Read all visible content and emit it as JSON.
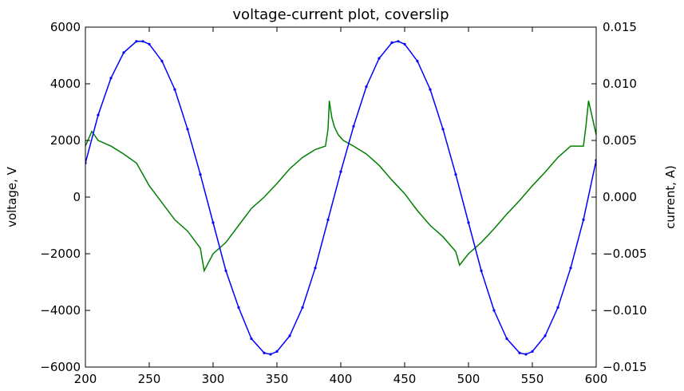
{
  "chart_data": {
    "type": "line",
    "title": "voltage-current plot, coverslip",
    "xlabel": "",
    "ylabel_left": "voltage, V",
    "ylabel_right": "current, A)",
    "xlim": [
      200,
      600
    ],
    "ylim_left": [
      -6000,
      6000
    ],
    "ylim_right": [
      -0.015,
      0.015
    ],
    "xticks": [
      "200",
      "250",
      "300",
      "350",
      "400",
      "450",
      "500",
      "550",
      "600"
    ],
    "yticks_left": [
      "6000",
      "4000",
      "2000",
      "0",
      "−2000",
      "−4000",
      "−6000"
    ],
    "yticks_right": [
      "0.015",
      "0.010",
      "0.005",
      "0.000",
      "−0.005",
      "−0.010",
      "−0.015"
    ],
    "grid": false,
    "series": [
      {
        "axis": "left",
        "color": "#0000ff",
        "marker": "dot",
        "x": [
          200,
          210,
          220,
          230,
          240,
          245,
          250,
          260,
          270,
          280,
          290,
          300,
          310,
          320,
          330,
          340,
          345,
          350,
          360,
          370,
          380,
          390,
          400,
          410,
          420,
          430,
          440,
          445,
          450,
          460,
          470,
          480,
          490,
          500,
          510,
          520,
          530,
          540,
          545,
          550,
          560,
          570,
          580,
          590,
          600
        ],
        "y": [
          1200,
          2900,
          4200,
          5100,
          5500,
          5500,
          5400,
          4800,
          3800,
          2400,
          800,
          -900,
          -2600,
          -3900,
          -5000,
          -5500,
          -5550,
          -5450,
          -4900,
          -3900,
          -2500,
          -800,
          900,
          2500,
          3900,
          4900,
          5450,
          5500,
          5400,
          4800,
          3800,
          2400,
          800,
          -900,
          -2600,
          -4000,
          -5000,
          -5500,
          -5550,
          -5450,
          -4900,
          -3900,
          -2500,
          -800,
          1300
        ]
      },
      {
        "axis": "right",
        "color": "#008000",
        "marker": "none",
        "x": [
          200,
          205,
          210,
          220,
          230,
          240,
          250,
          260,
          270,
          280,
          290,
          293,
          300,
          310,
          320,
          330,
          340,
          350,
          360,
          370,
          380,
          388,
          390,
          391,
          393,
          395,
          398,
          402,
          410,
          420,
          430,
          440,
          450,
          460,
          470,
          480,
          490,
          493,
          500,
          510,
          520,
          530,
          540,
          550,
          560,
          570,
          580,
          590,
          592,
          594,
          597,
          600
        ],
        "y": [
          0.0045,
          0.0058,
          0.005,
          0.0045,
          0.0038,
          0.003,
          0.001,
          -0.0005,
          -0.002,
          -0.003,
          -0.0045,
          -0.0065,
          -0.005,
          -0.004,
          -0.0025,
          -0.001,
          0.0,
          0.0012,
          0.0025,
          0.0035,
          0.0042,
          0.0045,
          0.006,
          0.0085,
          0.007,
          0.0062,
          0.0055,
          0.005,
          0.0045,
          0.0038,
          0.0028,
          0.0015,
          0.0003,
          -0.0012,
          -0.0025,
          -0.0035,
          -0.0048,
          -0.006,
          -0.005,
          -0.004,
          -0.0028,
          -0.0015,
          -0.0003,
          0.001,
          0.0022,
          0.0035,
          0.0045,
          0.0045,
          0.0063,
          0.0085,
          0.007,
          0.0055
        ]
      }
    ]
  }
}
